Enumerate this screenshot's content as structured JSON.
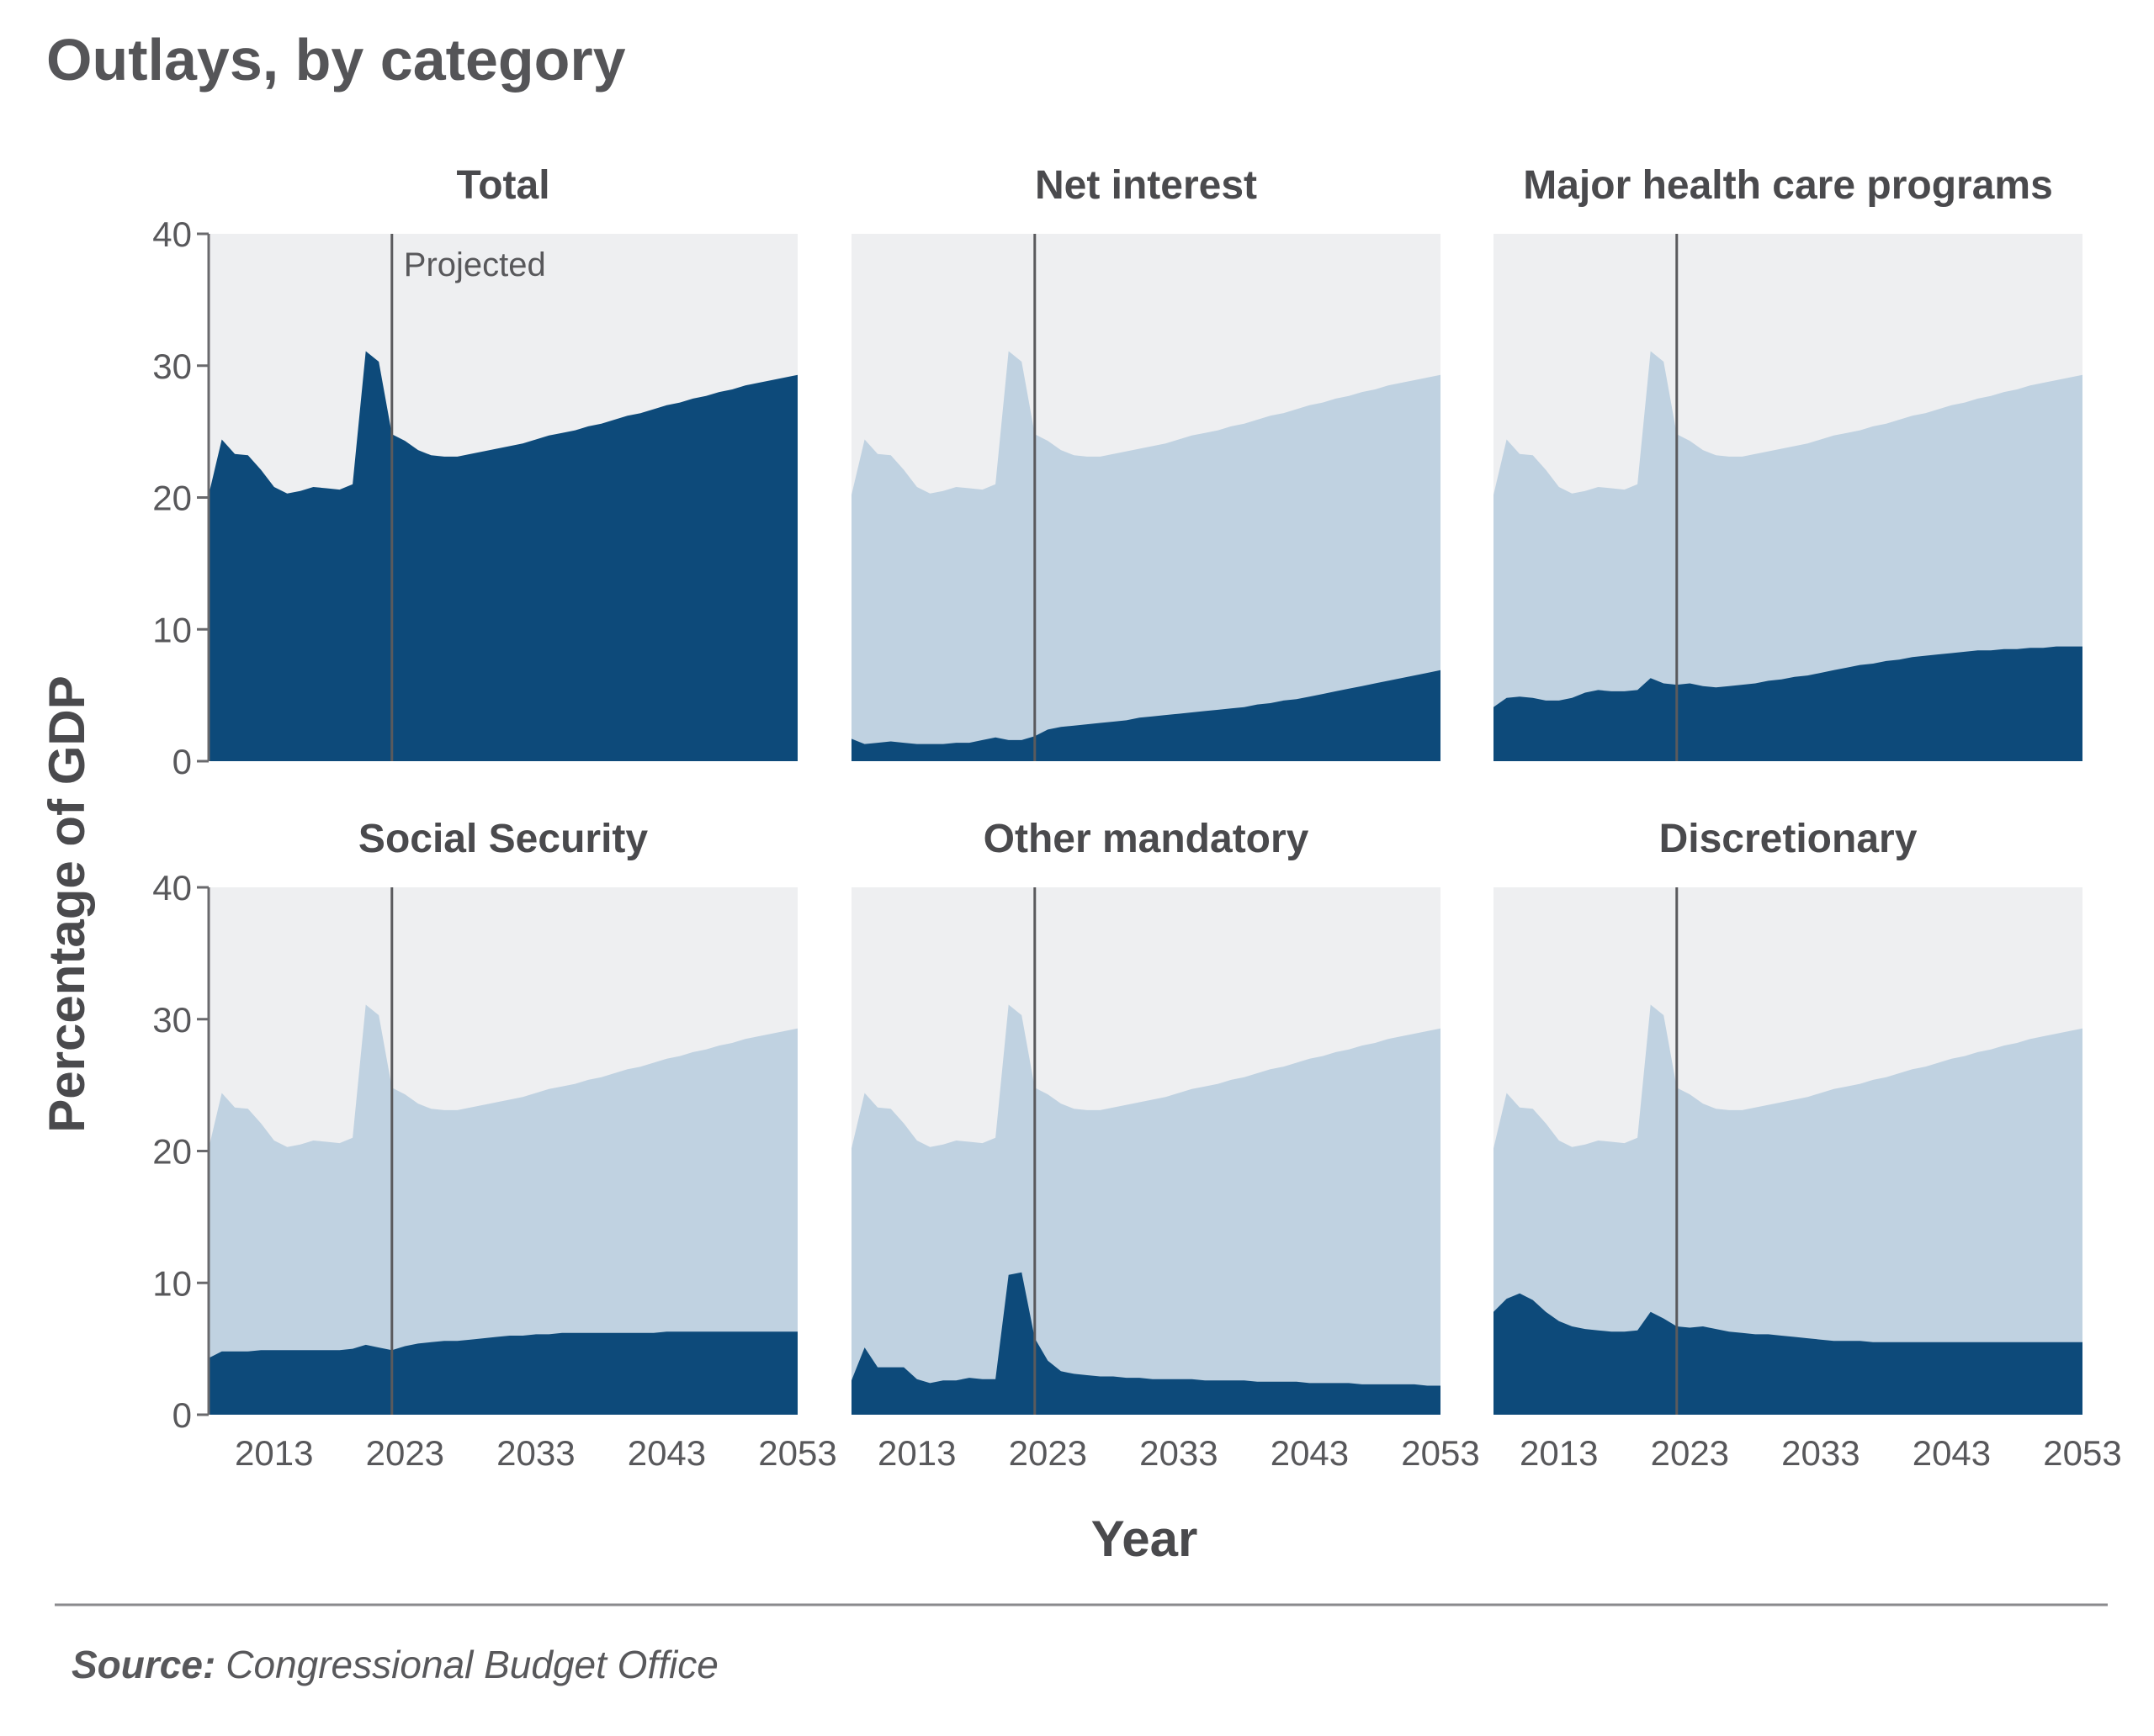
{
  "title": "Outlays, by category",
  "source": {
    "label": "Source:",
    "text": "Congressional Budget Office"
  },
  "colors": {
    "background_band": "#eeeff1",
    "total_light": "#c0d2e1",
    "category_dark": "#0d4a7a",
    "marker_line": "#5a5a5d",
    "text": "#4a4a4d"
  },
  "chart_data": {
    "type": "area",
    "xlabel": "Year",
    "ylabel": "Percentage of GDP",
    "xlim": [
      2008,
      2053
    ],
    "ylim": [
      0,
      40
    ],
    "x_ticks": [
      2013,
      2023,
      2033,
      2043,
      2053
    ],
    "y_ticks": [
      0,
      10,
      20,
      30,
      40
    ],
    "projection_start": 2022,
    "projection_label": "Projected",
    "grid": false,
    "x": [
      2008,
      2009,
      2010,
      2011,
      2012,
      2013,
      2014,
      2015,
      2016,
      2017,
      2018,
      2019,
      2020,
      2021,
      2022,
      2023,
      2024,
      2025,
      2026,
      2027,
      2028,
      2029,
      2030,
      2031,
      2032,
      2033,
      2034,
      2035,
      2036,
      2037,
      2038,
      2039,
      2040,
      2041,
      2042,
      2043,
      2044,
      2045,
      2046,
      2047,
      2048,
      2049,
      2050,
      2051,
      2052,
      2053
    ],
    "total": [
      20.2,
      24.4,
      23.3,
      23.2,
      22.1,
      20.8,
      20.3,
      20.5,
      20.8,
      20.7,
      20.6,
      21.0,
      31.1,
      30.3,
      24.8,
      24.3,
      23.6,
      23.2,
      23.1,
      23.1,
      23.3,
      23.5,
      23.7,
      23.9,
      24.1,
      24.4,
      24.7,
      24.9,
      25.1,
      25.4,
      25.6,
      25.9,
      26.2,
      26.4,
      26.7,
      27.0,
      27.2,
      27.5,
      27.7,
      28.0,
      28.2,
      28.5,
      28.7,
      28.9,
      29.1,
      29.3
    ],
    "panels": [
      {
        "title": "Total",
        "values": [
          20.2,
          24.4,
          23.3,
          23.2,
          22.1,
          20.8,
          20.3,
          20.5,
          20.8,
          20.7,
          20.6,
          21.0,
          31.1,
          30.3,
          24.8,
          24.3,
          23.6,
          23.2,
          23.1,
          23.1,
          23.3,
          23.5,
          23.7,
          23.9,
          24.1,
          24.4,
          24.7,
          24.9,
          25.1,
          25.4,
          25.6,
          25.9,
          26.2,
          26.4,
          26.7,
          27.0,
          27.2,
          27.5,
          27.7,
          28.0,
          28.2,
          28.5,
          28.7,
          28.9,
          29.1,
          29.3
        ]
      },
      {
        "title": "Net interest",
        "values": [
          1.7,
          1.3,
          1.4,
          1.5,
          1.4,
          1.3,
          1.3,
          1.3,
          1.4,
          1.4,
          1.6,
          1.8,
          1.6,
          1.6,
          1.9,
          2.4,
          2.6,
          2.7,
          2.8,
          2.9,
          3.0,
          3.1,
          3.3,
          3.4,
          3.5,
          3.6,
          3.7,
          3.8,
          3.9,
          4.0,
          4.1,
          4.3,
          4.4,
          4.6,
          4.7,
          4.9,
          5.1,
          5.3,
          5.5,
          5.7,
          5.9,
          6.1,
          6.3,
          6.5,
          6.7,
          6.9
        ]
      },
      {
        "title": "Major health care programs",
        "values": [
          4.1,
          4.8,
          4.9,
          4.8,
          4.6,
          4.6,
          4.8,
          5.2,
          5.4,
          5.3,
          5.3,
          5.4,
          6.3,
          5.9,
          5.8,
          5.9,
          5.7,
          5.6,
          5.7,
          5.8,
          5.9,
          6.1,
          6.2,
          6.4,
          6.5,
          6.7,
          6.9,
          7.1,
          7.3,
          7.4,
          7.6,
          7.7,
          7.9,
          8.0,
          8.1,
          8.2,
          8.3,
          8.4,
          8.4,
          8.5,
          8.5,
          8.6,
          8.6,
          8.7,
          8.7,
          8.7
        ]
      },
      {
        "title": "Social Security",
        "values": [
          4.3,
          4.8,
          4.8,
          4.8,
          4.9,
          4.9,
          4.9,
          4.9,
          4.9,
          4.9,
          4.9,
          5.0,
          5.3,
          5.1,
          4.9,
          5.2,
          5.4,
          5.5,
          5.6,
          5.6,
          5.7,
          5.8,
          5.9,
          6.0,
          6.0,
          6.1,
          6.1,
          6.2,
          6.2,
          6.2,
          6.2,
          6.2,
          6.2,
          6.2,
          6.2,
          6.3,
          6.3,
          6.3,
          6.3,
          6.3,
          6.3,
          6.3,
          6.3,
          6.3,
          6.3,
          6.3
        ]
      },
      {
        "title": "Other mandatory",
        "values": [
          2.6,
          5.1,
          3.6,
          3.6,
          3.6,
          2.7,
          2.4,
          2.6,
          2.6,
          2.8,
          2.7,
          2.7,
          10.6,
          10.8,
          5.8,
          4.1,
          3.3,
          3.1,
          3.0,
          2.9,
          2.9,
          2.8,
          2.8,
          2.7,
          2.7,
          2.7,
          2.7,
          2.6,
          2.6,
          2.6,
          2.6,
          2.5,
          2.5,
          2.5,
          2.5,
          2.4,
          2.4,
          2.4,
          2.4,
          2.3,
          2.3,
          2.3,
          2.3,
          2.3,
          2.2,
          2.2
        ]
      },
      {
        "title": "Discretionary",
        "values": [
          7.8,
          8.8,
          9.2,
          8.7,
          7.8,
          7.1,
          6.7,
          6.5,
          6.4,
          6.3,
          6.3,
          6.4,
          7.8,
          7.3,
          6.7,
          6.6,
          6.7,
          6.5,
          6.3,
          6.2,
          6.1,
          6.1,
          6.0,
          5.9,
          5.8,
          5.7,
          5.6,
          5.6,
          5.6,
          5.5,
          5.5,
          5.5,
          5.5,
          5.5,
          5.5,
          5.5,
          5.5,
          5.5,
          5.5,
          5.5,
          5.5,
          5.5,
          5.5,
          5.5,
          5.5,
          5.5
        ]
      }
    ]
  }
}
